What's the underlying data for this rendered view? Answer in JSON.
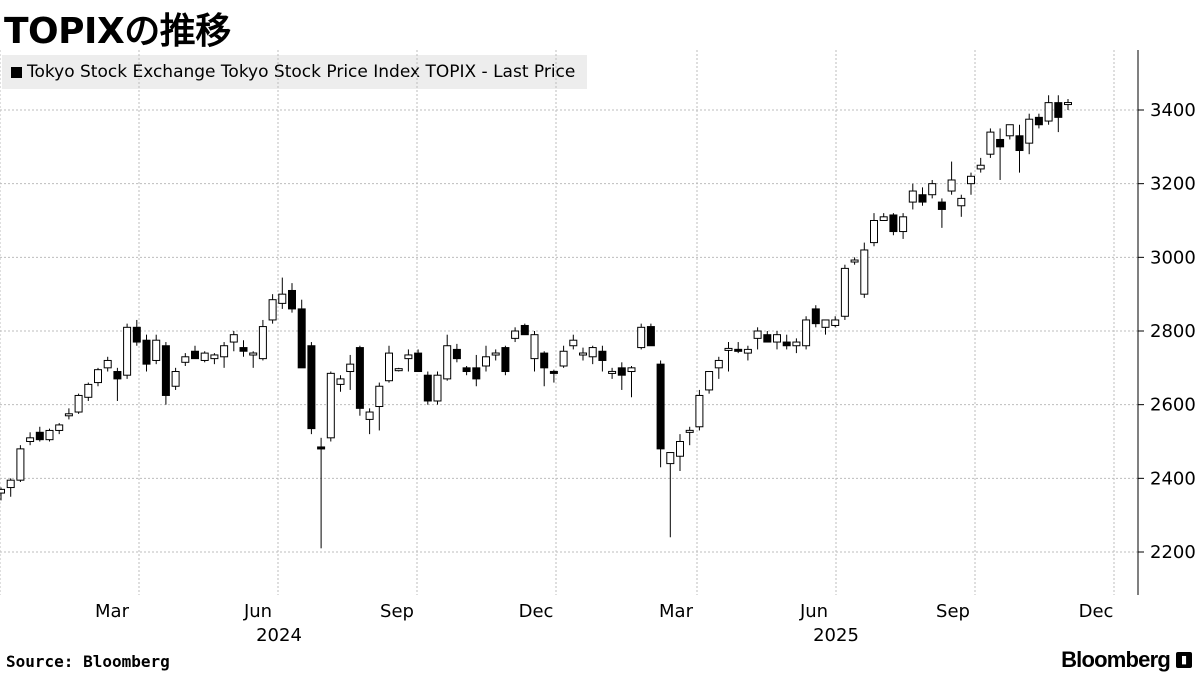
{
  "title": "TOPIXの推移",
  "source": "Source: Bloomberg",
  "brand": "Bloomberg",
  "brand_mark": "▮",
  "colors": {
    "up": "#ffffff",
    "down": "#000000",
    "grid": "#bdbdbd",
    "legend_bg": "#ededed"
  },
  "chart_data": {
    "type": "candlestick",
    "interval": "weekly",
    "series": [
      {
        "name": "Tokyo Stock Exchange Tokyo Stock Price Index TOPIX - Last Price"
      }
    ],
    "ylim": [
      2100,
      3520
    ],
    "yticks": [
      2200,
      2400,
      2600,
      2800,
      3000,
      3200,
      3400
    ],
    "x_month_labels": [
      "Mar",
      "Jun",
      "Sep",
      "Dec",
      "Mar",
      "Jun",
      "Sep",
      "Dec"
    ],
    "x_year_labels": [
      "2024",
      "2025"
    ],
    "grid": "dashed",
    "legend_position": "top-left",
    "ohlc": [
      [
        2360,
        2375,
        2340,
        2370
      ],
      [
        2375,
        2400,
        2350,
        2395
      ],
      [
        2395,
        2490,
        2390,
        2480
      ],
      [
        2500,
        2525,
        2490,
        2510
      ],
      [
        2525,
        2540,
        2500,
        2505
      ],
      [
        2505,
        2535,
        2500,
        2530
      ],
      [
        2530,
        2550,
        2520,
        2545
      ],
      [
        2570,
        2590,
        2560,
        2575
      ],
      [
        2580,
        2630,
        2575,
        2625
      ],
      [
        2620,
        2660,
        2610,
        2655
      ],
      [
        2660,
        2700,
        2650,
        2695
      ],
      [
        2700,
        2730,
        2690,
        2720
      ],
      [
        2690,
        2700,
        2610,
        2670
      ],
      [
        2680,
        2820,
        2670,
        2810
      ],
      [
        2810,
        2830,
        2760,
        2770
      ],
      [
        2775,
        2790,
        2690,
        2710
      ],
      [
        2720,
        2790,
        2710,
        2775
      ],
      [
        2760,
        2770,
        2600,
        2625
      ],
      [
        2650,
        2700,
        2640,
        2690
      ],
      [
        2715,
        2740,
        2705,
        2730
      ],
      [
        2745,
        2760,
        2725,
        2725
      ],
      [
        2720,
        2745,
        2715,
        2740
      ],
      [
        2725,
        2740,
        2710,
        2735
      ],
      [
        2730,
        2770,
        2700,
        2760
      ],
      [
        2770,
        2800,
        2745,
        2790
      ],
      [
        2755,
        2775,
        2730,
        2745
      ],
      [
        2735,
        2745,
        2700,
        2740
      ],
      [
        2725,
        2830,
        2720,
        2812
      ],
      [
        2830,
        2900,
        2820,
        2885
      ],
      [
        2875,
        2945,
        2860,
        2900
      ],
      [
        2910,
        2930,
        2850,
        2860
      ],
      [
        2860,
        2885,
        2700,
        2700
      ],
      [
        2760,
        2770,
        2520,
        2535
      ],
      [
        2485,
        2510,
        2210,
        2480
      ],
      [
        2510,
        2690,
        2500,
        2685
      ],
      [
        2655,
        2680,
        2635,
        2670
      ],
      [
        2690,
        2735,
        2640,
        2710
      ],
      [
        2755,
        2760,
        2570,
        2590
      ],
      [
        2560,
        2590,
        2520,
        2580
      ],
      [
        2595,
        2660,
        2530,
        2650
      ],
      [
        2665,
        2760,
        2660,
        2740
      ],
      [
        2695,
        2700,
        2690,
        2695
      ],
      [
        2725,
        2750,
        2690,
        2735
      ],
      [
        2740,
        2750,
        2690,
        2690
      ],
      [
        2680,
        2690,
        2600,
        2610
      ],
      [
        2610,
        2690,
        2600,
        2680
      ],
      [
        2670,
        2790,
        2665,
        2760
      ],
      [
        2750,
        2765,
        2715,
        2725
      ],
      [
        2700,
        2705,
        2680,
        2690
      ],
      [
        2700,
        2735,
        2650,
        2670
      ],
      [
        2705,
        2760,
        2690,
        2730
      ],
      [
        2735,
        2750,
        2720,
        2740
      ],
      [
        2755,
        2760,
        2680,
        2690
      ],
      [
        2780,
        2810,
        2770,
        2800
      ],
      [
        2815,
        2820,
        2790,
        2790
      ],
      [
        2725,
        2800,
        2690,
        2790
      ],
      [
        2740,
        2745,
        2650,
        2700
      ],
      [
        2690,
        2695,
        2660,
        2685
      ],
      [
        2705,
        2760,
        2700,
        2745
      ],
      [
        2760,
        2790,
        2750,
        2775
      ],
      [
        2735,
        2755,
        2720,
        2740
      ],
      [
        2730,
        2760,
        2710,
        2755
      ],
      [
        2745,
        2760,
        2690,
        2720
      ],
      [
        2685,
        2700,
        2670,
        2690
      ],
      [
        2700,
        2715,
        2640,
        2680
      ],
      [
        2690,
        2705,
        2620,
        2700
      ],
      [
        2755,
        2820,
        2750,
        2810
      ],
      [
        2812,
        2820,
        2760,
        2760
      ],
      [
        2710,
        2720,
        2430,
        2480
      ],
      [
        2440,
        2460,
        2240,
        2470
      ],
      [
        2460,
        2520,
        2420,
        2500
      ],
      [
        2525,
        2540,
        2490,
        2530
      ],
      [
        2540,
        2640,
        2530,
        2625
      ],
      [
        2640,
        2690,
        2630,
        2690
      ],
      [
        2700,
        2730,
        2670,
        2720
      ],
      [
        2750,
        2770,
        2690,
        2750
      ],
      [
        2750,
        2770,
        2740,
        2745
      ],
      [
        2740,
        2760,
        2720,
        2750
      ],
      [
        2780,
        2810,
        2750,
        2800
      ],
      [
        2790,
        2800,
        2770,
        2770
      ],
      [
        2770,
        2800,
        2750,
        2790
      ],
      [
        2770,
        2790,
        2750,
        2760
      ],
      [
        2760,
        2780,
        2740,
        2770
      ],
      [
        2760,
        2840,
        2750,
        2830
      ],
      [
        2860,
        2870,
        2810,
        2820
      ],
      [
        2810,
        2830,
        2790,
        2830
      ],
      [
        2815,
        2840,
        2810,
        2830
      ],
      [
        2840,
        2980,
        2830,
        2970
      ],
      [
        2990,
        3000,
        2980,
        2990
      ],
      [
        2900,
        3040,
        2890,
        3020
      ],
      [
        3040,
        3120,
        3030,
        3100
      ],
      [
        3100,
        3120,
        3100,
        3110
      ],
      [
        3115,
        3120,
        3060,
        3070
      ],
      [
        3070,
        3120,
        3050,
        3110
      ],
      [
        3150,
        3200,
        3130,
        3180
      ],
      [
        3170,
        3190,
        3140,
        3150
      ],
      [
        3170,
        3210,
        3160,
        3200
      ],
      [
        3150,
        3160,
        3080,
        3130
      ],
      [
        3180,
        3260,
        3170,
        3210
      ],
      [
        3140,
        3170,
        3110,
        3160
      ],
      [
        3200,
        3230,
        3170,
        3220
      ],
      [
        3240,
        3270,
        3230,
        3250
      ],
      [
        3280,
        3350,
        3270,
        3340
      ],
      [
        3320,
        3350,
        3210,
        3300
      ],
      [
        3330,
        3360,
        3320,
        3360
      ],
      [
        3330,
        3360,
        3230,
        3290
      ],
      [
        3310,
        3390,
        3280,
        3375
      ],
      [
        3380,
        3390,
        3350,
        3360
      ],
      [
        3370,
        3440,
        3360,
        3420
      ],
      [
        3420,
        3440,
        3340,
        3380
      ],
      [
        3415,
        3430,
        3400,
        3420
      ]
    ]
  }
}
